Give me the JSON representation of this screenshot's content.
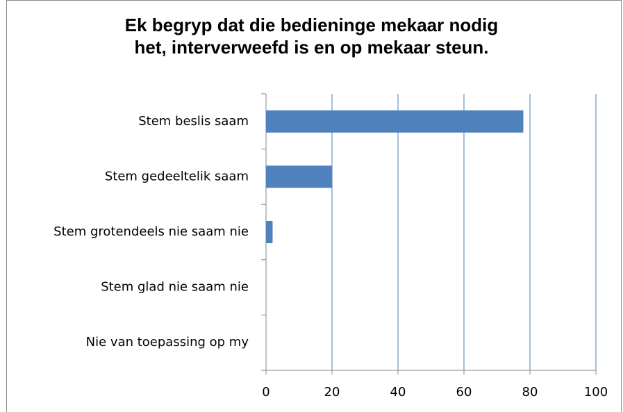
{
  "chart_data": {
    "type": "bar",
    "orientation": "horizontal",
    "title": "Ek begryp dat die bedieninge mekaar nodig\nhet, interverweefd is en op mekaar steun.",
    "categories": [
      "Stem beslis saam",
      "Stem gedeeltelik saam",
      "Stem grotendeels nie saam nie",
      "Stem glad nie saam nie",
      "Nie van toepassing op my"
    ],
    "values": [
      78,
      20,
      2,
      0,
      0
    ],
    "color": "#4f81bd",
    "xlim": [
      0,
      100
    ],
    "xticks": [
      0,
      20,
      40,
      60,
      80,
      100
    ],
    "grid": true
  }
}
